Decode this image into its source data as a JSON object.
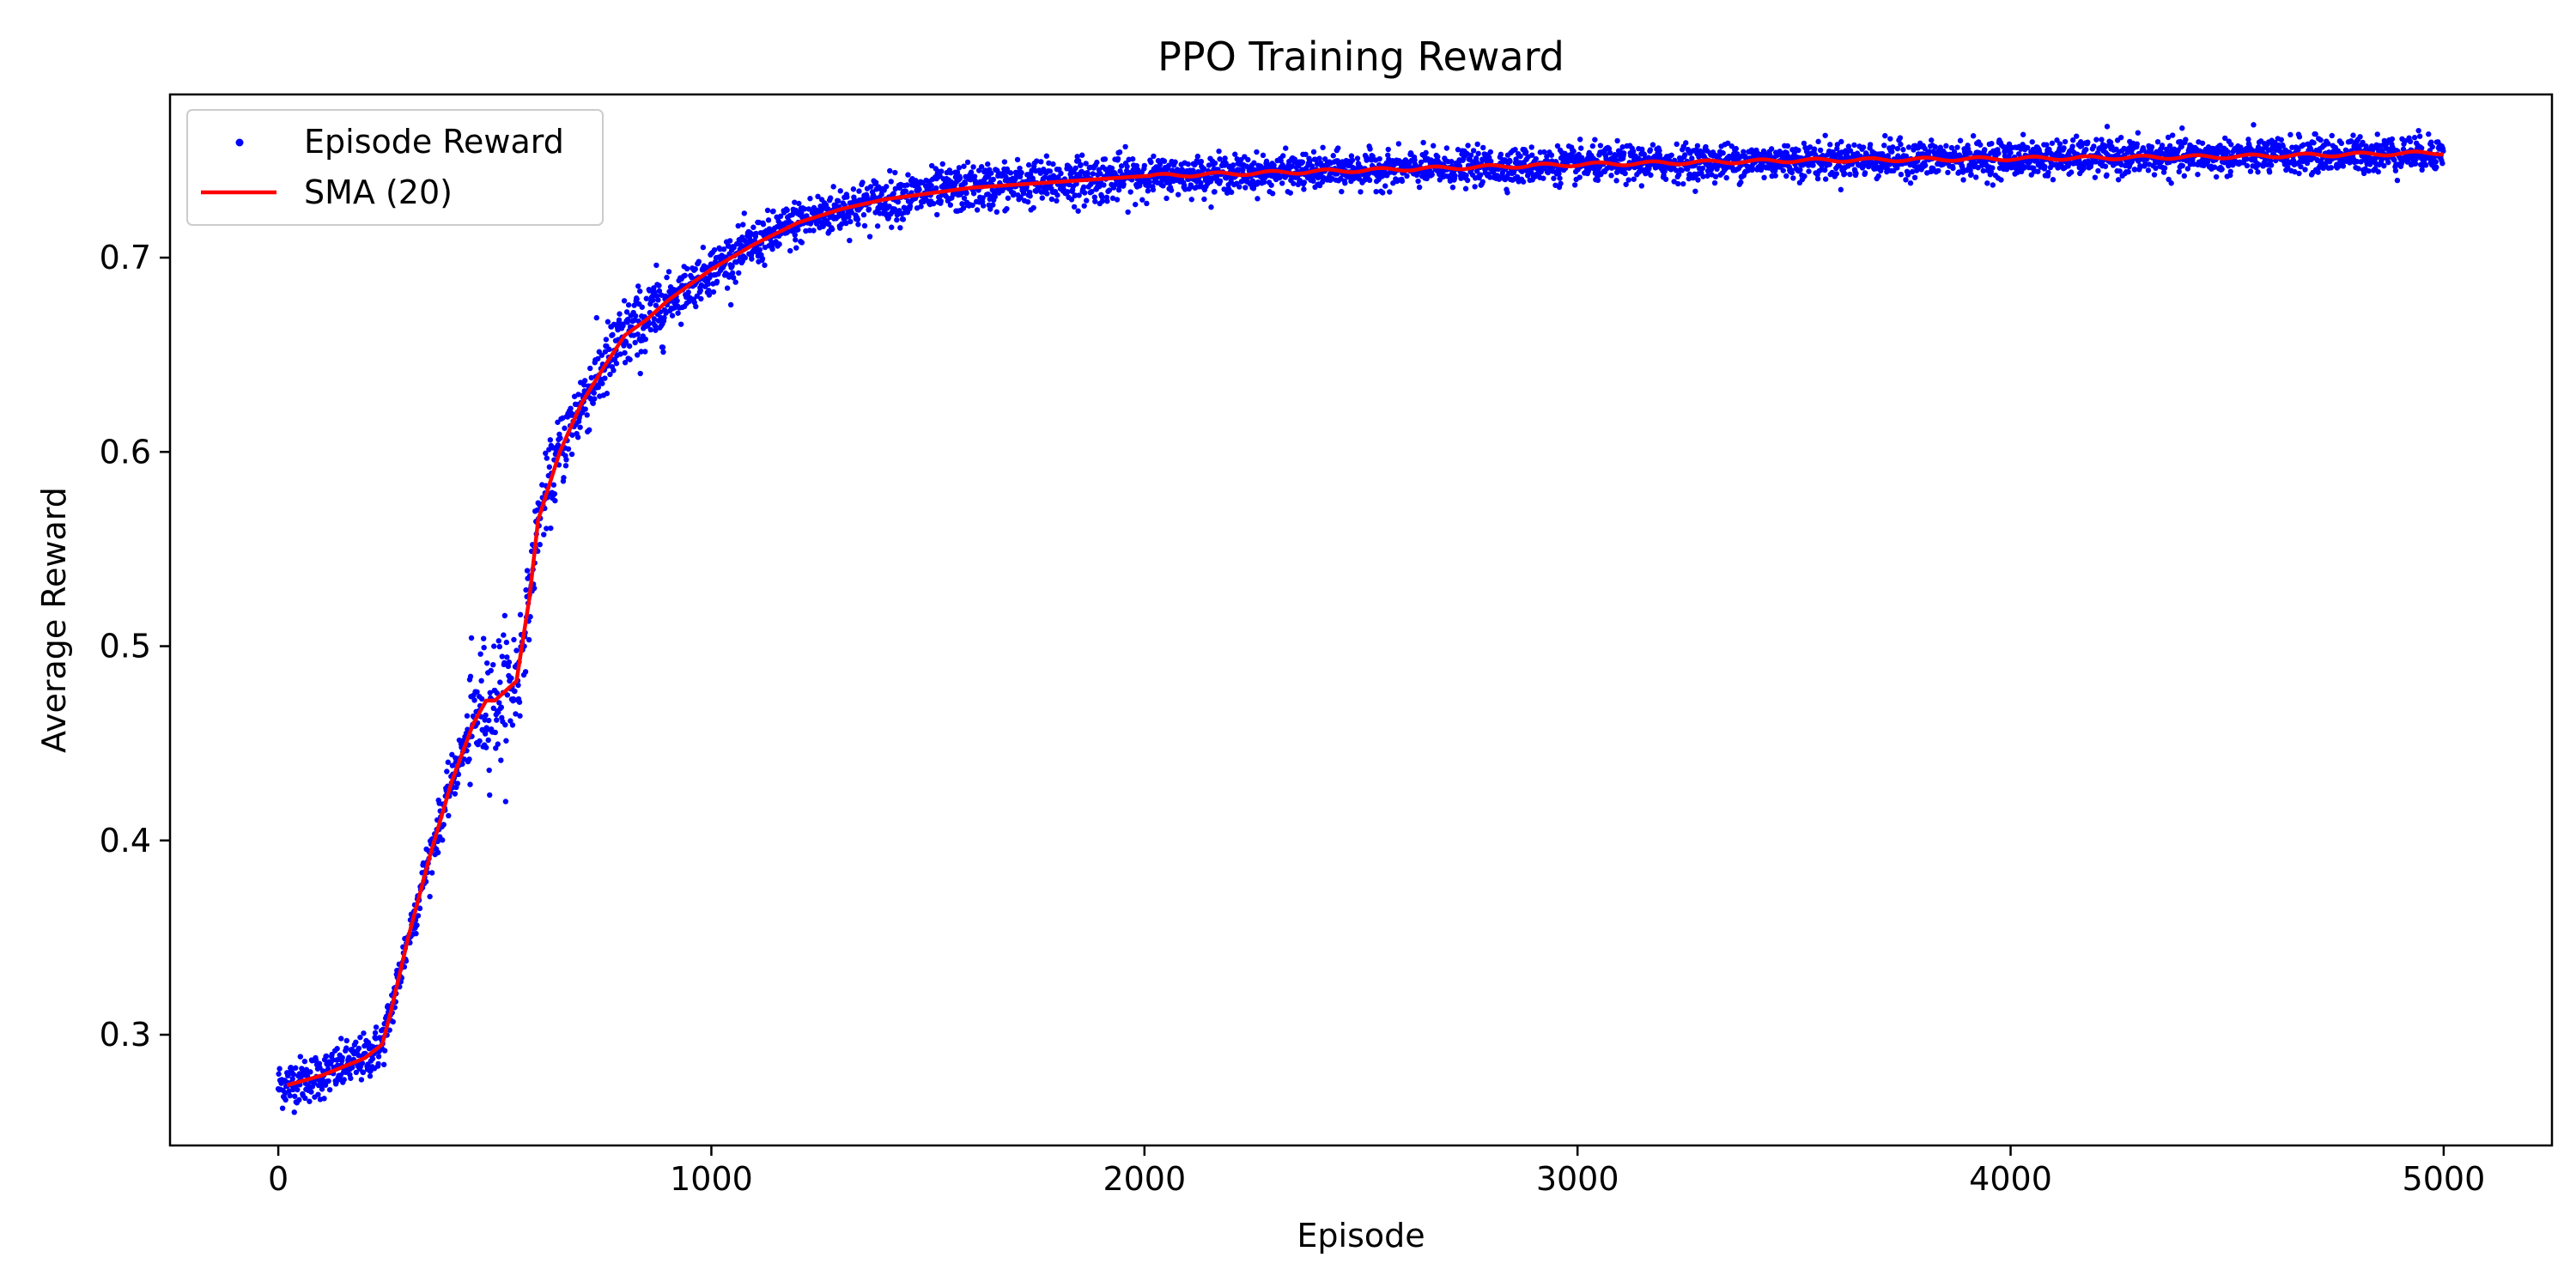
{
  "chart_data": {
    "type": "scatter",
    "title": "PPO Training Reward",
    "xlabel": "Episode",
    "ylabel": "Average Reward",
    "xlim": [
      -250,
      5250
    ],
    "ylim": [
      0.243,
      0.784
    ],
    "xticks": [
      0,
      1000,
      2000,
      3000,
      4000,
      5000
    ],
    "yticks": [
      0.3,
      0.4,
      0.5,
      0.6,
      0.7
    ],
    "grid": false,
    "legend_placement": "top-left",
    "series": [
      {
        "name": "Episode Reward",
        "kind": "scatter",
        "color": "#0000ff",
        "n_points": 5000,
        "noise": 0.006,
        "x": [
          0,
          100,
          200,
          240,
          260,
          300,
          350,
          400,
          450,
          480,
          500,
          550,
          580,
          600,
          650,
          700,
          750,
          800,
          850,
          900,
          1000,
          1100,
          1200,
          1300,
          1400,
          1500,
          1600,
          1800,
          2000,
          2500,
          3000,
          3500,
          4000,
          4500,
          5000
        ],
        "y": [
          0.274,
          0.279,
          0.288,
          0.295,
          0.312,
          0.35,
          0.392,
          0.43,
          0.46,
          0.472,
          0.472,
          0.482,
          0.525,
          0.565,
          0.6,
          0.625,
          0.643,
          0.66,
          0.668,
          0.678,
          0.694,
          0.707,
          0.718,
          0.725,
          0.73,
          0.733,
          0.736,
          0.739,
          0.742,
          0.745,
          0.748,
          0.75,
          0.751,
          0.752,
          0.754
        ]
      },
      {
        "name": "SMA (20)",
        "kind": "line",
        "color": "#ff0000",
        "x": [
          20,
          100,
          200,
          240,
          260,
          300,
          350,
          400,
          450,
          480,
          500,
          550,
          580,
          600,
          650,
          700,
          750,
          800,
          850,
          900,
          1000,
          1100,
          1200,
          1300,
          1400,
          1500,
          1600,
          1800,
          2000,
          2500,
          3000,
          3500,
          4000,
          4500,
          5000
        ],
        "y": [
          0.274,
          0.279,
          0.288,
          0.295,
          0.312,
          0.35,
          0.392,
          0.43,
          0.46,
          0.472,
          0.472,
          0.482,
          0.525,
          0.565,
          0.6,
          0.625,
          0.643,
          0.66,
          0.668,
          0.678,
          0.694,
          0.707,
          0.718,
          0.725,
          0.73,
          0.733,
          0.736,
          0.739,
          0.742,
          0.745,
          0.748,
          0.75,
          0.751,
          0.752,
          0.754
        ]
      }
    ]
  }
}
